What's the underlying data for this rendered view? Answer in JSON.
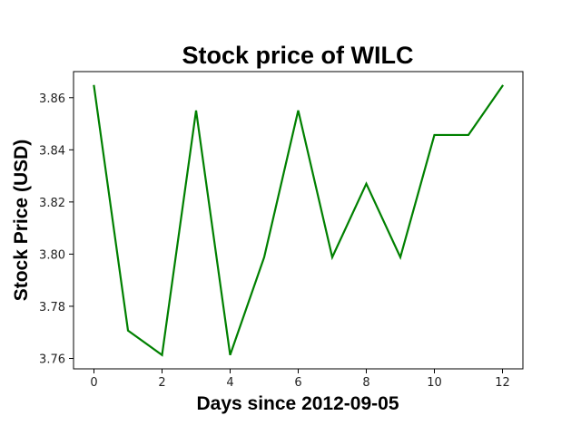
{
  "chart_data": {
    "type": "line",
    "title": "Stock price of WILC",
    "xlabel": "Days since 2012-09-05",
    "ylabel": "Stock Price (USD)",
    "x": [
      0,
      1,
      2,
      3,
      4,
      5,
      6,
      7,
      8,
      9,
      10,
      11,
      12
    ],
    "series": [
      {
        "values": [
          3.8645,
          3.7707,
          3.7613,
          3.8551,
          3.7613,
          3.7988,
          3.8551,
          3.7988,
          3.827,
          3.7988,
          3.8457,
          3.8457,
          3.8645
        ]
      }
    ],
    "xlim": [
      -0.6,
      12.6
    ],
    "ylim": [
      3.756,
      3.87
    ],
    "xticks": [
      0,
      2,
      4,
      6,
      8,
      10,
      12
    ],
    "yticks": [
      3.76,
      3.78,
      3.8,
      3.82,
      3.84,
      3.86
    ],
    "ytick_labels": [
      "3.76",
      "3.78",
      "3.80",
      "3.82",
      "3.84",
      "3.86"
    ],
    "grid": false,
    "line_color": "#008000"
  }
}
